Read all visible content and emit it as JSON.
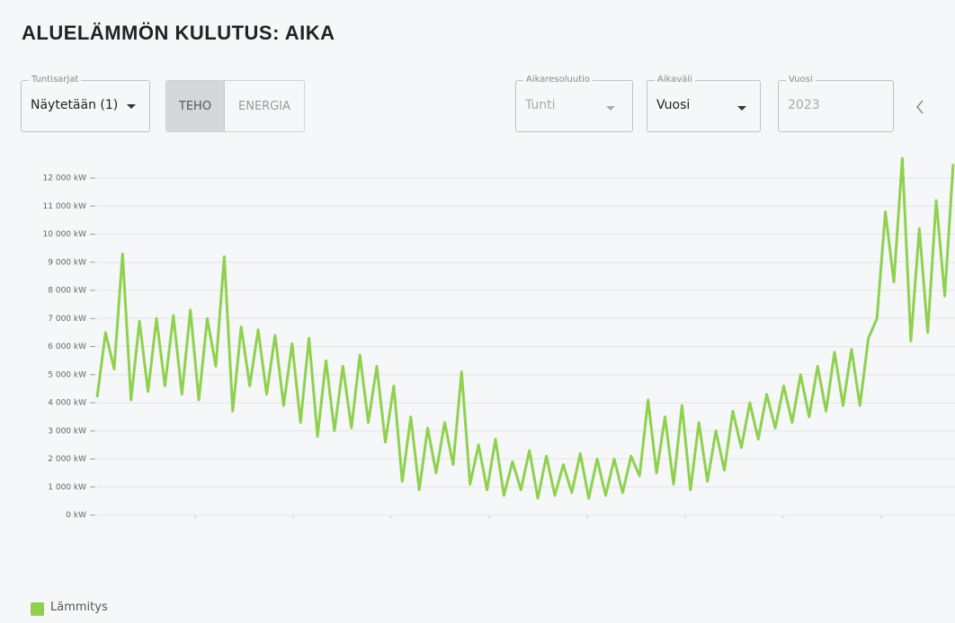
{
  "title": "ALUELÄMMÖN KULUTUS: AIKA",
  "controls": {
    "tuntisarjat": {
      "label": "Tuntisarjat",
      "value": "Näytetään (1)"
    },
    "toggle": [
      "TEHO",
      "ENERGIA"
    ],
    "aikaresoluutio": {
      "label": "Aikaresoluutio",
      "value": "Tunti"
    },
    "aikavali": {
      "label": "Aikaväli",
      "value": "Vuosi"
    },
    "vuosi": {
      "label": "Vuosi",
      "value": "2023"
    }
  },
  "chart_data": {
    "type": "line",
    "series": [
      {
        "name": "Lämmitys",
        "color": "#8fd14f",
        "values": [
          4200,
          6500,
          5200,
          9300,
          4100,
          6900,
          4400,
          7000,
          4600,
          7100,
          4300,
          7300,
          4100,
          7000,
          5300,
          9200,
          3700,
          6700,
          4600,
          6600,
          4300,
          6400,
          3900,
          6100,
          3300,
          6300,
          2800,
          5500,
          3000,
          5300,
          3100,
          5700,
          3300,
          5300,
          2600,
          4600,
          1200,
          3500,
          900,
          3100,
          1500,
          3300,
          1800,
          5100,
          1100,
          2500,
          900,
          2700,
          700,
          1900,
          900,
          2300,
          600,
          2100,
          700,
          1800,
          800,
          2200,
          600,
          2000,
          700,
          2000,
          800,
          2100,
          1400,
          4100,
          1500,
          3500,
          1100,
          3900,
          900,
          3300,
          1200,
          3000,
          1600,
          3700,
          2400,
          4000,
          2700,
          4300,
          3100,
          4600,
          3300,
          5000,
          3500,
          5300,
          3700,
          5800,
          3900,
          5900,
          3900,
          6300,
          7000,
          10800,
          8300,
          12700,
          6200,
          10200,
          6500,
          11200,
          7800,
          12500
        ]
      }
    ],
    "ylim": [
      0,
      13000
    ],
    "yticks": [
      {
        "value": 0,
        "label": "0 kW"
      },
      {
        "value": 1000,
        "label": "1 000 kW"
      },
      {
        "value": 2000,
        "label": "2 000 kW"
      },
      {
        "value": 3000,
        "label": "3 000 kW"
      },
      {
        "value": 4000,
        "label": "4 000 kW"
      },
      {
        "value": 5000,
        "label": "5 000 kW"
      },
      {
        "value": 6000,
        "label": "6 000 kW"
      },
      {
        "value": 7000,
        "label": "7 000 kW"
      },
      {
        "value": 8000,
        "label": "8 000 kW"
      },
      {
        "value": 9000,
        "label": "9 000 kW"
      },
      {
        "value": 10000,
        "label": "10 000 kW"
      },
      {
        "value": 11000,
        "label": "11 000 kW"
      },
      {
        "value": 12000,
        "label": "12 000 kW"
      }
    ],
    "grid": true
  }
}
